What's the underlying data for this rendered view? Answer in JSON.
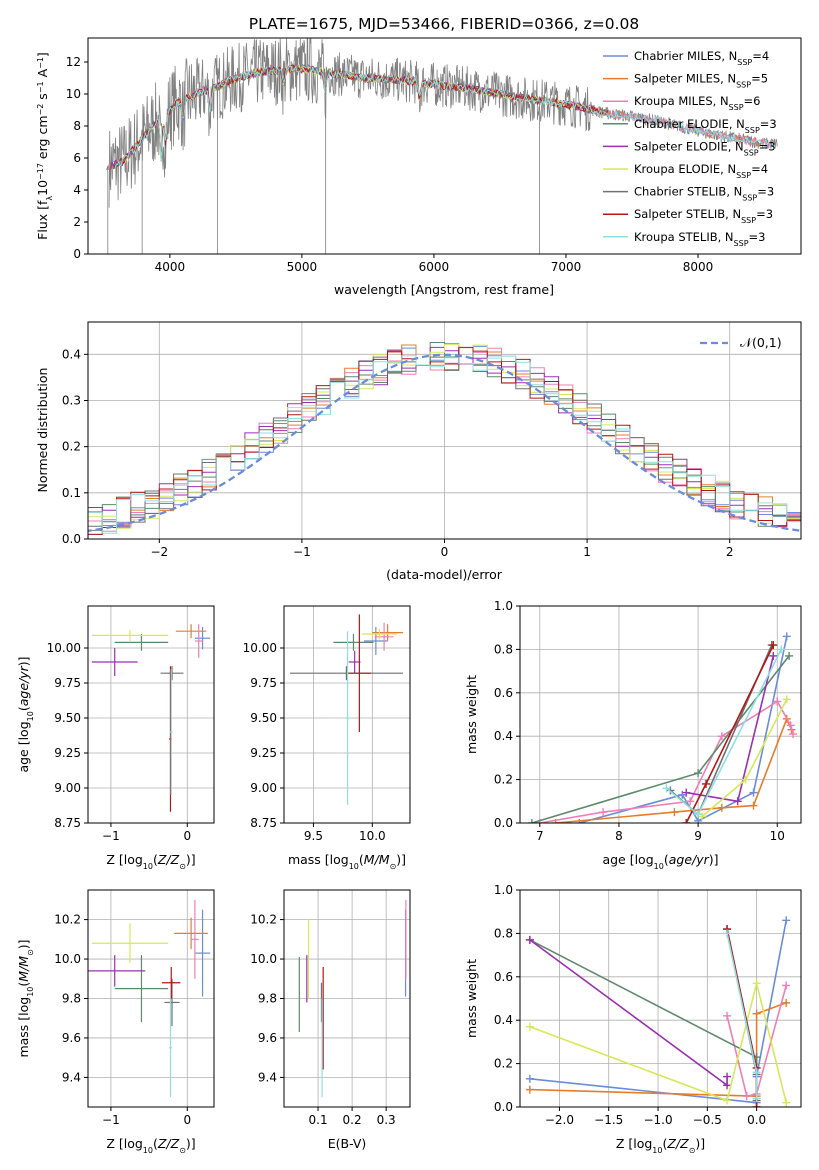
{
  "title": "PLATE=1675, MJD=53466, FIBERID=0366, z=0.08",
  "colors": {
    "chabrier_miles": "#6b8cda",
    "salpeter_miles": "#e57d2a",
    "kroupa_miles": "#f07eb5",
    "chabrier_elodie": "#5e8a6a",
    "salpeter_elodie": "#9a30b0",
    "kroupa_elodie": "#d6e85a",
    "chabrier_stelib": "#707070",
    "salpeter_stelib": "#b01818",
    "kroupa_stelib": "#8edfe0",
    "data": "#808080"
  },
  "chart_data": [
    {
      "id": "spectrum",
      "type": "line",
      "xlabel": "wavelength [Angstrom, rest frame]",
      "ylabel": "Flux [f_λ 10^-17 erg cm^-2 s^-1 A^-1]",
      "xlim": [
        3380,
        8780
      ],
      "ylim": [
        0,
        13.5
      ],
      "xticks": [
        4000,
        5000,
        6000,
        7000,
        8000
      ],
      "yticks": [
        0,
        2,
        4,
        6,
        8,
        10,
        12
      ],
      "legend": [
        {
          "label": "Chabrier MILES, N_SSP=4",
          "color_key": "chabrier_miles"
        },
        {
          "label": "Salpeter MILES, N_SSP=5",
          "color_key": "salpeter_miles"
        },
        {
          "label": "Kroupa MILES, N_SSP=6",
          "color_key": "kroupa_miles"
        },
        {
          "label": "Chabrier ELODIE, N_SSP=3",
          "color_key": "chabrier_elodie"
        },
        {
          "label": "Salpeter ELODIE, N_SSP=3",
          "color_key": "salpeter_elodie"
        },
        {
          "label": "Kroupa ELODIE, N_SSP=4",
          "color_key": "kroupa_elodie"
        },
        {
          "label": "Chabrier STELIB, N_SSP=3",
          "color_key": "chabrier_stelib"
        },
        {
          "label": "Salpeter STELIB, N_SSP=3",
          "color_key": "salpeter_stelib"
        },
        {
          "label": "Kroupa STELIB, N_SSP=3",
          "color_key": "kroupa_stelib"
        }
      ],
      "continuum": {
        "x": [
          3550,
          3650,
          3750,
          3850,
          3950,
          4050,
          4150,
          4250,
          4350,
          4450,
          4550,
          4700,
          4850,
          5000,
          5150,
          5300,
          5500,
          5700,
          5900,
          6100,
          6300,
          6500,
          6700,
          6900,
          7100,
          7300,
          7500,
          7700,
          7900,
          8100,
          8300,
          8500
        ],
        "y": [
          5.5,
          5.8,
          6.8,
          7.8,
          8.6,
          9.4,
          9.8,
          10.2,
          10.4,
          10.8,
          11.1,
          11.4,
          11.5,
          11.6,
          11.4,
          11.2,
          11.0,
          10.9,
          10.7,
          10.5,
          10.3,
          10.0,
          9.7,
          9.5,
          9.2,
          8.8,
          8.6,
          8.3,
          7.9,
          7.5,
          7.2,
          6.9
        ]
      },
      "absorption_features": [
        {
          "x": 3934,
          "depth": 2.5
        },
        {
          "x": 3968,
          "depth": 2.0
        },
        {
          "x": 4101,
          "depth": 1.2
        },
        {
          "x": 4304,
          "depth": 1.3
        },
        {
          "x": 4861,
          "depth": 0.8
        },
        {
          "x": 5175,
          "depth": 1.2
        },
        {
          "x": 5892,
          "depth": 1.0
        }
      ]
    },
    {
      "id": "residuals",
      "type": "line",
      "xlabel": "(data-model)/error",
      "ylabel": "Normed distribution",
      "xlim": [
        -2.5,
        2.5
      ],
      "ylim": [
        0,
        0.47
      ],
      "xticks": [
        -2,
        -1,
        0,
        1,
        2
      ],
      "yticks": [
        0.0,
        0.1,
        0.2,
        0.3,
        0.4
      ],
      "legend": [
        {
          "label": "𝒩(0,1)",
          "color_key": "chabrier_miles"
        }
      ],
      "bin_width": 0.1
    },
    {
      "id": "age-vs-z",
      "type": "scatter",
      "xlabel": "Z [log10(Z/Z⊙)]",
      "ylabel": "age  [log10(age/yr)]",
      "xlim": [
        -1.3,
        0.35
      ],
      "ylim": [
        8.75,
        10.3
      ],
      "xticks": [
        -1,
        0
      ],
      "yticks": [
        8.75,
        9.0,
        9.25,
        9.5,
        9.75,
        10.0
      ],
      "points": [
        {
          "color_key": "chabrier_miles",
          "x": 0.2,
          "y": 10.07,
          "xerr": 0.1,
          "yerr": 0.08
        },
        {
          "color_key": "salpeter_miles",
          "x": 0.05,
          "y": 10.12,
          "xerr": 0.2,
          "yerr": 0.05
        },
        {
          "color_key": "kroupa_miles",
          "x": 0.15,
          "y": 10.05,
          "xerr": 0.05,
          "yerr": 0.12
        },
        {
          "color_key": "chabrier_elodie",
          "x": -0.6,
          "y": 10.04,
          "xerr": 0.35,
          "yerr": 0.06
        },
        {
          "color_key": "salpeter_elodie",
          "x": -0.95,
          "y": 9.9,
          "xerr": 0.3,
          "yerr": 0.1
        },
        {
          "color_key": "kroupa_elodie",
          "x": -0.75,
          "y": 10.09,
          "xerr": 0.5,
          "yerr": 0.04
        },
        {
          "color_key": "chabrier_stelib",
          "x": -0.2,
          "y": 9.82,
          "xerr": 0.15,
          "yerr": 0.05
        },
        {
          "color_key": "salpeter_stelib",
          "x": -0.22,
          "y": 9.35,
          "xerr": 0.02,
          "yerr": 0.52
        },
        {
          "color_key": "kroupa_stelib",
          "x": -0.21,
          "y": 9.4,
          "xerr": 0.02,
          "yerr": 0.45
        }
      ]
    },
    {
      "id": "age-vs-mass",
      "type": "scatter",
      "xlabel": "mass [log10(M/M⊙)]",
      "ylabel": "",
      "xlim": [
        9.25,
        10.32
      ],
      "ylim": [
        8.75,
        10.3
      ],
      "xticks": [
        9.5,
        10.0
      ],
      "yticks": [
        8.75,
        9.0,
        9.25,
        9.5,
        9.75,
        10.0
      ],
      "points": [
        {
          "color_key": "chabrier_miles",
          "x": 10.03,
          "y": 10.05,
          "xerr": 0.1,
          "yerr": 0.1
        },
        {
          "color_key": "salpeter_miles",
          "x": 10.13,
          "y": 10.11,
          "xerr": 0.13,
          "yerr": 0.06
        },
        {
          "color_key": "kroupa_miles",
          "x": 10.1,
          "y": 10.08,
          "xerr": 0.08,
          "yerr": 0.1
        },
        {
          "color_key": "chabrier_elodie",
          "x": 9.84,
          "y": 10.04,
          "xerr": 0.17,
          "yerr": 0.06
        },
        {
          "color_key": "salpeter_elodie",
          "x": 9.85,
          "y": 9.9,
          "xerr": 0.05,
          "yerr": 0.08
        },
        {
          "color_key": "kroupa_elodie",
          "x": 10.06,
          "y": 10.1,
          "xerr": 0.15,
          "yerr": 0.04
        },
        {
          "color_key": "chabrier_stelib",
          "x": 9.78,
          "y": 9.82,
          "xerr": 0.48,
          "yerr": 0.05
        },
        {
          "color_key": "salpeter_stelib",
          "x": 9.89,
          "y": 9.82,
          "xerr": 0.1,
          "yerr": 0.42
        },
        {
          "color_key": "kroupa_stelib",
          "x": 9.79,
          "y": 9.5,
          "xerr": 0.02,
          "yerr": 0.62
        }
      ]
    },
    {
      "id": "weight-vs-age",
      "type": "line",
      "xlabel": "age  [log10(age/yr)]",
      "ylabel": "mass weight",
      "xlim": [
        6.75,
        10.3
      ],
      "ylim": [
        0,
        1.0
      ],
      "xticks": [
        7,
        8,
        9,
        10
      ],
      "yticks": [
        0.0,
        0.2,
        0.4,
        0.6,
        0.8,
        1.0
      ],
      "series": [
        {
          "color_key": "chabrier_miles",
          "x": [
            7.5,
            8.8,
            9.0,
            9.7,
            10.12
          ],
          "y": [
            0.0,
            0.13,
            0.01,
            0.14,
            0.86
          ]
        },
        {
          "color_key": "salpeter_miles",
          "x": [
            7.2,
            8.7,
            9.3,
            9.7,
            10.12,
            10.18
          ],
          "y": [
            0.0,
            0.05,
            0.07,
            0.08,
            0.48,
            0.43
          ]
        },
        {
          "color_key": "kroupa_miles",
          "x": [
            7.0,
            7.8,
            8.9,
            9.3,
            10.0,
            10.17,
            10.2
          ],
          "y": [
            0.0,
            0.05,
            0.1,
            0.4,
            0.56,
            0.45,
            0.41
          ]
        },
        {
          "color_key": "chabrier_elodie",
          "x": [
            6.9,
            9.0,
            10.15
          ],
          "y": [
            0.0,
            0.23,
            0.77
          ]
        },
        {
          "color_key": "salpeter_elodie",
          "x": [
            8.85,
            9.5,
            9.95
          ],
          "y": [
            0.14,
            0.1,
            0.77
          ]
        },
        {
          "color_key": "kroupa_elodie",
          "x": [
            9.05,
            9.6,
            10.12
          ],
          "y": [
            0.03,
            0.2,
            0.57
          ]
        },
        {
          "color_key": "chabrier_stelib",
          "x": [
            8.65,
            9.0,
            9.93
          ],
          "y": [
            0.15,
            0.04,
            0.82
          ]
        },
        {
          "color_key": "salpeter_stelib",
          "x": [
            8.85,
            9.1,
            9.95
          ],
          "y": [
            0.0,
            0.18,
            0.82
          ]
        },
        {
          "color_key": "kroupa_stelib",
          "x": [
            8.6,
            9.0,
            10.05
          ],
          "y": [
            0.16,
            0.04,
            0.8
          ]
        }
      ]
    },
    {
      "id": "mass-vs-z",
      "type": "scatter",
      "xlabel": "Z [log10(Z/Z⊙)]",
      "ylabel": "mass [log10(M/M⊙)]",
      "xlim": [
        -1.3,
        0.35
      ],
      "ylim": [
        9.25,
        10.35
      ],
      "xticks": [
        -1,
        0
      ],
      "yticks": [
        9.4,
        9.6,
        9.8,
        10.0,
        10.2
      ],
      "points": [
        {
          "color_key": "chabrier_miles",
          "x": 0.2,
          "y": 10.03,
          "xerr": 0.1,
          "yerr": 0.22
        },
        {
          "color_key": "salpeter_miles",
          "x": 0.05,
          "y": 10.13,
          "xerr": 0.22,
          "yerr": 0.08
        },
        {
          "color_key": "kroupa_miles",
          "x": 0.1,
          "y": 10.1,
          "xerr": 0.05,
          "yerr": 0.2
        },
        {
          "color_key": "chabrier_elodie",
          "x": -0.6,
          "y": 9.85,
          "xerr": 0.35,
          "yerr": 0.17
        },
        {
          "color_key": "salpeter_elodie",
          "x": -0.95,
          "y": 9.94,
          "xerr": 0.4,
          "yerr": 0.08
        },
        {
          "color_key": "kroupa_elodie",
          "x": -0.75,
          "y": 10.08,
          "xerr": 0.5,
          "yerr": 0.1
        },
        {
          "color_key": "chabrier_stelib",
          "x": -0.2,
          "y": 9.78,
          "xerr": 0.1,
          "yerr": 0.12
        },
        {
          "color_key": "salpeter_stelib",
          "x": -0.21,
          "y": 9.88,
          "xerr": 0.12,
          "yerr": 0.08
        },
        {
          "color_key": "kroupa_stelib",
          "x": -0.22,
          "y": 9.55,
          "xerr": 0.02,
          "yerr": 0.25
        }
      ]
    },
    {
      "id": "mass-vs-ebv",
      "type": "scatter",
      "xlabel": "E(B-V)",
      "ylabel": "",
      "xlim": [
        0.0,
        0.37
      ],
      "ylim": [
        9.25,
        10.35
      ],
      "xticks": [
        0.1,
        0.2,
        0.3
      ],
      "yticks": [
        9.4,
        9.6,
        9.8,
        10.0,
        10.2
      ],
      "points": [
        {
          "color_key": "chabrier_miles",
          "x": 0.357,
          "y": 10.03,
          "xerr": 0.0,
          "yerr": 0.22
        },
        {
          "color_key": "salpeter_miles",
          "x": 0.358,
          "y": 10.13,
          "xerr": 0.0,
          "yerr": 0.12
        },
        {
          "color_key": "kroupa_miles",
          "x": 0.358,
          "y": 10.1,
          "xerr": 0.0,
          "yerr": 0.2
        },
        {
          "color_key": "chabrier_elodie",
          "x": 0.045,
          "y": 9.82,
          "xerr": 0.0,
          "yerr": 0.19
        },
        {
          "color_key": "salpeter_elodie",
          "x": 0.067,
          "y": 9.9,
          "xerr": 0.0,
          "yerr": 0.12
        },
        {
          "color_key": "kroupa_elodie",
          "x": 0.072,
          "y": 10.0,
          "xerr": 0.0,
          "yerr": 0.2
        },
        {
          "color_key": "chabrier_stelib",
          "x": 0.11,
          "y": 9.78,
          "xerr": 0.0,
          "yerr": 0.1
        },
        {
          "color_key": "salpeter_stelib",
          "x": 0.115,
          "y": 9.7,
          "xerr": 0.0,
          "yerr": 0.26
        },
        {
          "color_key": "kroupa_stelib",
          "x": 0.112,
          "y": 9.55,
          "xerr": 0.0,
          "yerr": 0.25
        }
      ]
    },
    {
      "id": "weight-vs-z",
      "type": "line",
      "xlabel": "Z [log10(Z/Z⊙)]",
      "ylabel": "mass weight",
      "xlim": [
        -2.4,
        0.45
      ],
      "ylim": [
        0,
        1.0
      ],
      "xticks": [
        -2.0,
        -1.5,
        -1.0,
        -0.5,
        0.0
      ],
      "yticks": [
        0.0,
        0.2,
        0.4,
        0.6,
        0.8,
        1.0
      ],
      "series": [
        {
          "color_key": "chabrier_miles",
          "x": [
            -2.3,
            0.0,
            0.0,
            0.3
          ],
          "y": [
            0.13,
            0.02,
            0.14,
            0.86
          ]
        },
        {
          "color_key": "salpeter_miles",
          "x": [
            -2.3,
            0.0,
            0.0,
            0.3
          ],
          "y": [
            0.08,
            0.05,
            0.43,
            0.48
          ]
        },
        {
          "color_key": "kroupa_miles",
          "x": [
            -0.3,
            -0.1,
            0.0,
            0.3
          ],
          "y": [
            0.42,
            0.05,
            0.06,
            0.56
          ]
        },
        {
          "color_key": "chabrier_elodie",
          "x": [
            -2.3,
            0.0,
            0.0
          ],
          "y": [
            0.77,
            0.23,
            0.0
          ]
        },
        {
          "color_key": "salpeter_elodie",
          "x": [
            -2.3,
            -0.3,
            -0.3
          ],
          "y": [
            0.77,
            0.1,
            0.14
          ]
        },
        {
          "color_key": "kroupa_elodie",
          "x": [
            -2.3,
            -0.3,
            0.0,
            0.3
          ],
          "y": [
            0.37,
            0.03,
            0.57,
            0.02
          ]
        },
        {
          "color_key": "chabrier_stelib",
          "x": [
            -0.3,
            0.0,
            0.0
          ],
          "y": [
            0.82,
            0.15,
            0.03
          ]
        },
        {
          "color_key": "salpeter_stelib",
          "x": [
            -0.3,
            0.0,
            0.0
          ],
          "y": [
            0.82,
            0.18,
            0.0
          ]
        },
        {
          "color_key": "kroupa_stelib",
          "x": [
            -0.3,
            0.0,
            0.0
          ],
          "y": [
            0.8,
            0.16,
            0.04
          ]
        }
      ]
    }
  ]
}
